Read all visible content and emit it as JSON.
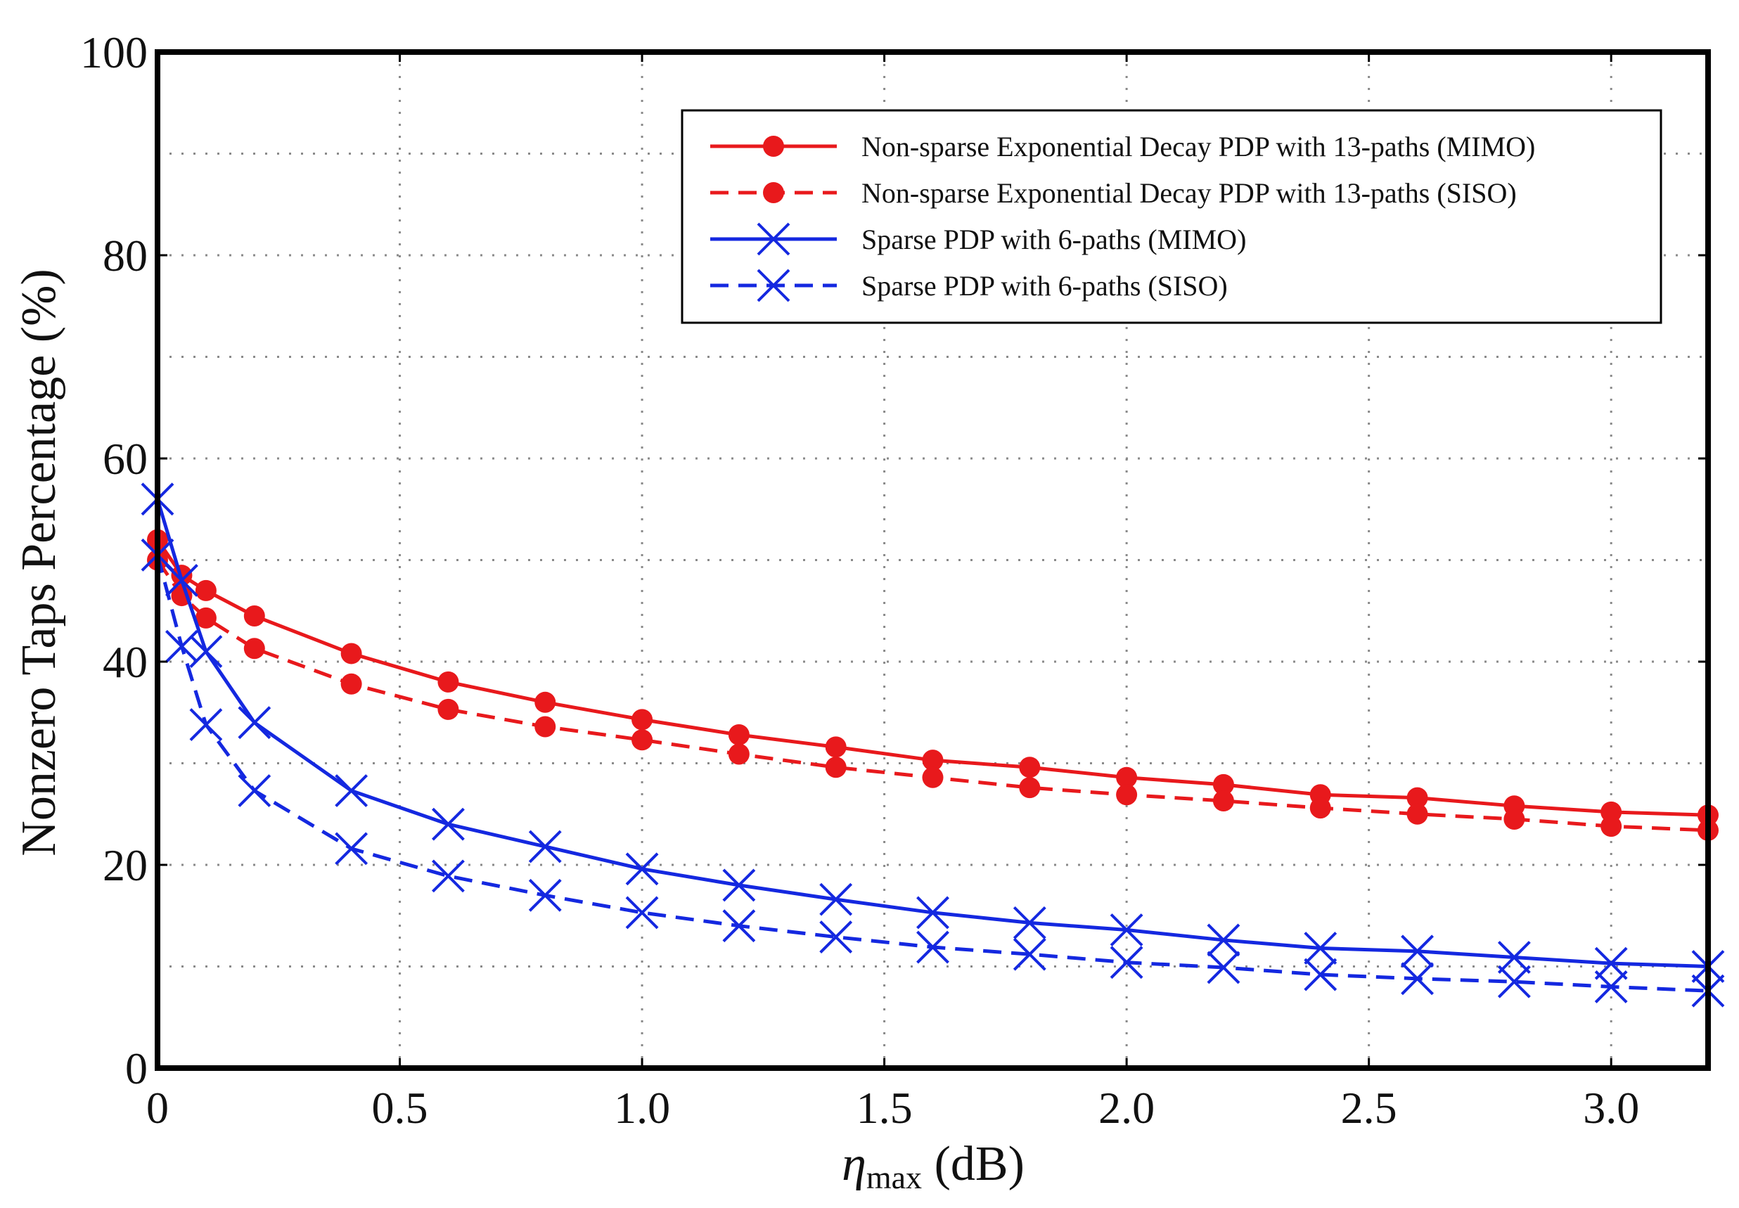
{
  "chart_data": {
    "type": "line",
    "title": "",
    "xlabel": {
      "symbol": "η",
      "subscript": "max",
      "unit": " (dB)"
    },
    "ylabel": "Nonzero Taps Percentage (%)",
    "xlim": [
      0,
      3.2
    ],
    "ylim": [
      0,
      100
    ],
    "grid": true,
    "legend_position": "top-right",
    "x_ticks": [
      0,
      0.5,
      1.0,
      1.5,
      2.0,
      2.5,
      3.0
    ],
    "x_tick_labels": [
      "0",
      "0.5",
      "1.0",
      "1.5",
      "2.0",
      "2.5",
      "3.0"
    ],
    "y_ticks": [
      0,
      20,
      40,
      60,
      80,
      100
    ],
    "y_tick_labels": [
      "0",
      "20",
      "40",
      "60",
      "80",
      "100"
    ],
    "y_minor_grid": [
      10,
      30,
      50,
      70,
      90
    ],
    "x": [
      0,
      0.05,
      0.1,
      0.2,
      0.4,
      0.6,
      0.8,
      1.0,
      1.2,
      1.4,
      1.6,
      1.8,
      2.0,
      2.2,
      2.4,
      2.6,
      2.8,
      3.0,
      3.2
    ],
    "series": [
      {
        "name": "Non-sparse Exponential Decay PDP with 13-paths (MIMO)",
        "color": "#e8191c",
        "line_style": "solid",
        "marker": "circle",
        "values": [
          52,
          48.5,
          47,
          44.5,
          40.8,
          38,
          36,
          34.3,
          32.8,
          31.6,
          30.3,
          29.6,
          28.6,
          27.9,
          26.9,
          26.6,
          25.8,
          25.2,
          24.9
        ]
      },
      {
        "name": "Non-sparse Exponential Decay PDP with 13-paths (SISO)",
        "color": "#e8191c",
        "line_style": "dashed",
        "marker": "circle",
        "values": [
          50,
          46.5,
          44.3,
          41.3,
          37.8,
          35.3,
          33.6,
          32.3,
          30.9,
          29.6,
          28.6,
          27.6,
          26.9,
          26.3,
          25.6,
          25,
          24.5,
          23.8,
          23.4
        ]
      },
      {
        "name": "Sparse PDP with 6-paths (MIMO)",
        "color": "#1428e0",
        "line_style": "solid",
        "marker": "x",
        "values": [
          56,
          48,
          41,
          34,
          27.3,
          24,
          21.8,
          19.6,
          18,
          16.6,
          15.3,
          14.3,
          13.6,
          12.6,
          11.8,
          11.5,
          10.9,
          10.3,
          10
        ]
      },
      {
        "name": "Sparse PDP with 6-paths (SISO)",
        "color": "#1428e0",
        "line_style": "dashed",
        "marker": "x",
        "values": [
          50.5,
          41.5,
          33.8,
          27.3,
          21.6,
          18.9,
          17,
          15.3,
          14,
          12.9,
          11.9,
          11.2,
          10.4,
          9.9,
          9.2,
          8.8,
          8.5,
          8,
          7.6
        ]
      }
    ]
  }
}
